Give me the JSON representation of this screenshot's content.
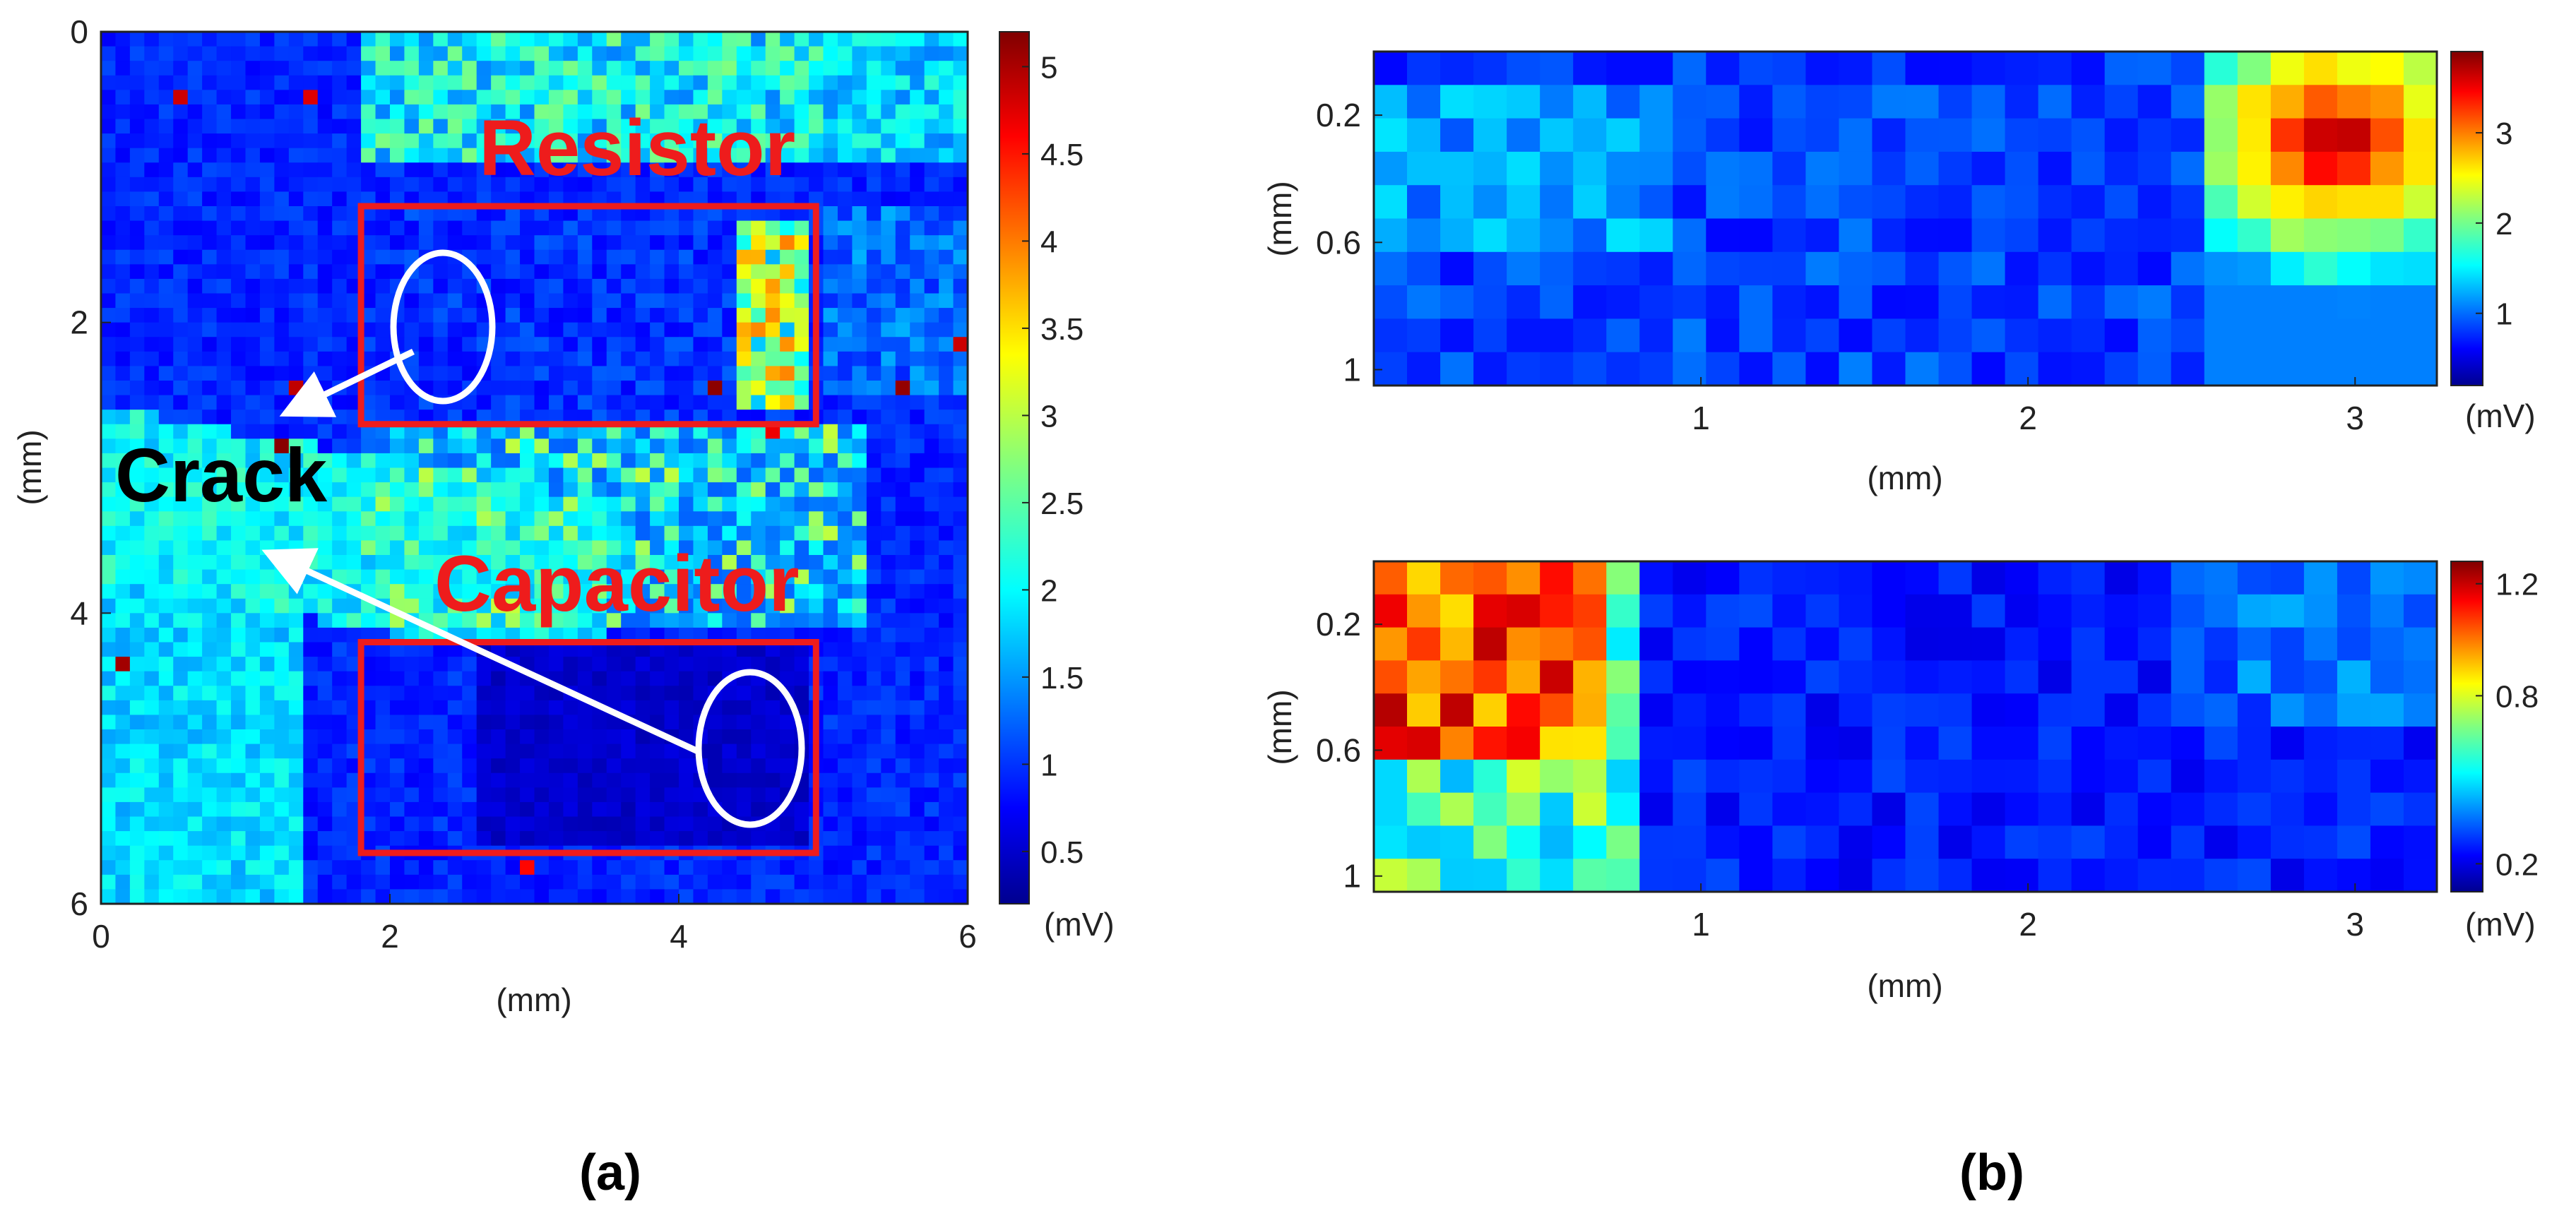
{
  "figure_labels": {
    "a": "(a)",
    "b": "(b)"
  },
  "colors": {
    "annotation_red": "#ee1c1c",
    "annotation_white": "#ffffff",
    "crack_text": "#000000"
  },
  "chart_data": [
    {
      "id": "panel-a",
      "type": "heatmap",
      "title": "",
      "xlabel": "(mm)",
      "ylabel": "(mm)",
      "xlim": [
        0,
        6
      ],
      "ylim": [
        0,
        6
      ],
      "y_reversed": true,
      "x_ticks": [
        "0",
        "2",
        "4",
        "6"
      ],
      "y_ticks": [
        "0",
        "2",
        "4",
        "6"
      ],
      "grid": {
        "cols": 60,
        "rows": 60
      },
      "colorbar": {
        "ticks": [
          "0.5",
          "1",
          "1.5",
          "2",
          "2.5",
          "3",
          "3.5",
          "4",
          "4.5",
          "5"
        ],
        "range": [
          0.2,
          5.2
        ],
        "unit": "(mV)"
      },
      "annotations": {
        "resistor_label": "Resistor",
        "capacitor_label": "Capacitor",
        "crack_label": "Crack",
        "resistor_box_mm": {
          "x0": 1.8,
          "y0": 1.2,
          "x1": 4.95,
          "y1": 2.7
        },
        "capacitor_box_mm": {
          "x0": 1.8,
          "y0": 4.2,
          "x1": 4.95,
          "y1": 5.65
        }
      }
    },
    {
      "id": "panel-b-top",
      "type": "heatmap",
      "title": "",
      "xlabel": "(mm)",
      "ylabel": "(mm)",
      "xlim": [
        0,
        3.25
      ],
      "ylim": [
        0,
        1.05
      ],
      "x_ticks": [
        "1",
        "2",
        "3"
      ],
      "y_ticks": [
        "0.2",
        "0.6",
        "1"
      ],
      "grid": {
        "cols": 32,
        "rows": 10
      },
      "colorbar": {
        "ticks": [
          "1",
          "2",
          "3"
        ],
        "range": [
          0.2,
          3.9
        ],
        "unit": "(mV)"
      }
    },
    {
      "id": "panel-b-bottom",
      "type": "heatmap",
      "title": "",
      "xlabel": "(mm)",
      "ylabel": "(mm)",
      "xlim": [
        0,
        3.25
      ],
      "ylim": [
        0,
        1.05
      ],
      "x_ticks": [
        "1",
        "2",
        "3"
      ],
      "y_ticks": [
        "0.2",
        "0.6",
        "1"
      ],
      "grid": {
        "cols": 32,
        "rows": 10
      },
      "colorbar": {
        "ticks": [
          "0.2",
          "0.8",
          "1.2"
        ],
        "range": [
          0.1,
          1.28
        ],
        "unit": "(mV)"
      }
    }
  ]
}
